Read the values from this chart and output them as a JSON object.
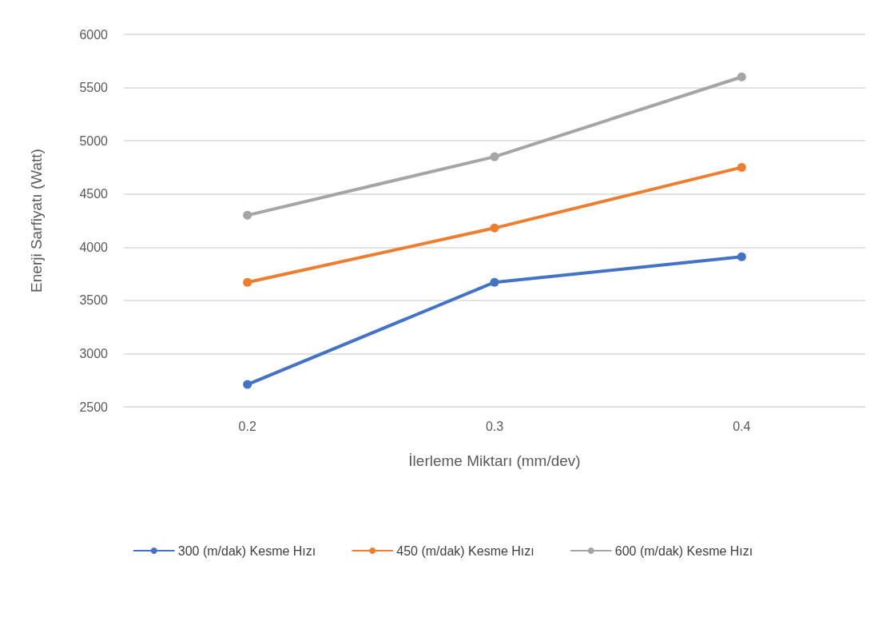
{
  "chart_data": {
    "type": "line",
    "xlabel": "İlerleme Miktarı (mm/dev)",
    "ylabel": "Enerji Sarfiyatı (Watt)",
    "categories": [
      "0.2",
      "0.3",
      "0.4"
    ],
    "series": [
      {
        "name": "300 (m/dak) Kesme Hızı",
        "color": "#4472c4",
        "values": [
          2710,
          3670,
          3910
        ]
      },
      {
        "name": "450 (m/dak) Kesme Hızı",
        "color": "#ed7d31",
        "values": [
          3670,
          4180,
          4750
        ]
      },
      {
        "name": "600 (m/dak) Kesme Hızı",
        "color": "#a5a5a5",
        "values": [
          4300,
          4850,
          5600
        ]
      }
    ],
    "ylim": [
      2500,
      6000
    ],
    "yticks": [
      2500,
      3000,
      3500,
      4000,
      4500,
      5000,
      5500,
      6000
    ],
    "grid": "y",
    "legend": "bottom",
    "marker": "circle",
    "line_style": "solid"
  }
}
